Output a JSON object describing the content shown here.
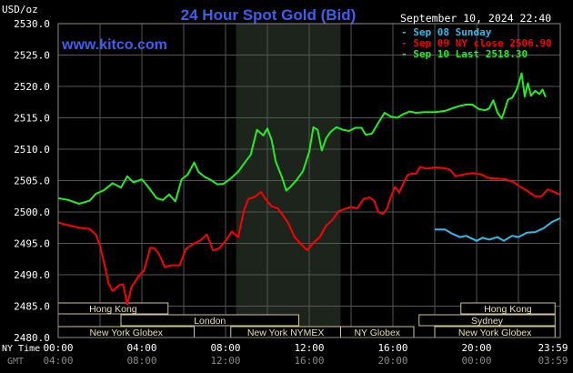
{
  "header": {
    "title": "24 Hour Spot Gold (Bid)",
    "unit": "USD/oz",
    "site": "www.kitco.com",
    "timestamp": "September 10, 2024 22:40"
  },
  "legend": [
    {
      "label": "Sep 08 Sunday",
      "color": "#33bbee"
    },
    {
      "label": "Sep 09 NY close 2506.90",
      "color": "#ff0000"
    },
    {
      "label": "Sep 10 Last 2518.30",
      "color": "#22ee22"
    }
  ],
  "axis_footer": {
    "nytime_label": "NY Time",
    "gmt_label": "GMT"
  },
  "markets": [
    {
      "name": "Hong Kong",
      "start": -1,
      "end": 5.25,
      "row": 0
    },
    {
      "name": "Hong Kong",
      "start": 19.25,
      "end": 23.75,
      "row": 0
    },
    {
      "name": "London",
      "start": 3,
      "end": 11.5,
      "row": 1
    },
    {
      "name": "Sydney",
      "start": 17.25,
      "end": 23.75,
      "row": 1
    },
    {
      "name": "New York Globex",
      "start": -1,
      "end": 6.5,
      "row": 2
    },
    {
      "name": "New York NYMEX",
      "start": 8.25,
      "end": 13.5,
      "row": 2
    },
    {
      "name": "NY Globex",
      "start": 13.5,
      "end": 17,
      "row": 2
    },
    {
      "name": "New York Globex",
      "start": 18,
      "end": 23.75,
      "row": 2
    }
  ],
  "chart_data": {
    "type": "line",
    "title": "24 Hour Spot Gold (Bid)",
    "ylabel": "USD/oz",
    "xlim": [
      0,
      24
    ],
    "ylim": [
      2480,
      2530
    ],
    "yticks": [
      "2530.0",
      "2525.0",
      "2520.0",
      "2515.0",
      "2510.0",
      "2505.0",
      "2500.0",
      "2495.0",
      "2490.0",
      "2485.0",
      "2480.0"
    ],
    "xticks_ny": [
      "00:00",
      "04:00",
      "08:00",
      "12:00",
      "16:00",
      "20:00",
      "23:59"
    ],
    "xticks_gmt": [
      "04:00",
      "08:00",
      "12:00",
      "16:00",
      "20:00",
      "00:00",
      "03:59"
    ],
    "shaded_hours": [
      8.5,
      13.5
    ],
    "series": [
      {
        "name": "Sep 08 Sunday",
        "color": "#33bbee",
        "points": [
          [
            18,
            2497.2
          ],
          [
            18.5,
            2497.2
          ],
          [
            18.8,
            2496.6
          ],
          [
            19.2,
            2496.0
          ],
          [
            19.5,
            2496.2
          ],
          [
            20,
            2495.4
          ],
          [
            20.3,
            2495.9
          ],
          [
            20.6,
            2495.6
          ],
          [
            21,
            2496.0
          ],
          [
            21.3,
            2495.4
          ],
          [
            21.7,
            2496.2
          ],
          [
            22,
            2496.0
          ],
          [
            22.4,
            2496.7
          ],
          [
            22.8,
            2496.8
          ],
          [
            23.2,
            2497.4
          ],
          [
            23.6,
            2498.4
          ],
          [
            23.99,
            2499.0
          ]
        ]
      },
      {
        "name": "Sep 09 NY close 2506.90",
        "color": "#ff0000",
        "points": [
          [
            0,
            2498.3
          ],
          [
            0.5,
            2497.9
          ],
          [
            1,
            2497.5
          ],
          [
            1.5,
            2497.3
          ],
          [
            1.8,
            2496.4
          ],
          [
            2,
            2494.6
          ],
          [
            2.2,
            2491.8
          ],
          [
            2.4,
            2488.7
          ],
          [
            2.6,
            2487.4
          ],
          [
            2.9,
            2488.3
          ],
          [
            3.1,
            2488.5
          ],
          [
            3.3,
            2485.3
          ],
          [
            3.5,
            2488.0
          ],
          [
            3.8,
            2489.6
          ],
          [
            4.1,
            2490.7
          ],
          [
            4.4,
            2494.3
          ],
          [
            4.6,
            2494.2
          ],
          [
            4.8,
            2493.4
          ],
          [
            5.1,
            2491.2
          ],
          [
            5.4,
            2491.5
          ],
          [
            5.8,
            2491.5
          ],
          [
            6.1,
            2494.1
          ],
          [
            6.4,
            2494.8
          ],
          [
            6.8,
            2495.5
          ],
          [
            7.1,
            2496.4
          ],
          [
            7.4,
            2493.9
          ],
          [
            7.7,
            2494.2
          ],
          [
            8,
            2495.4
          ],
          [
            8.3,
            2496.9
          ],
          [
            8.6,
            2496.0
          ],
          [
            8.9,
            2500.5
          ],
          [
            9.1,
            2502.1
          ],
          [
            9.4,
            2502.4
          ],
          [
            9.7,
            2503.2
          ],
          [
            9.9,
            2502.1
          ],
          [
            10.2,
            2500.9
          ],
          [
            10.5,
            2500.6
          ],
          [
            10.8,
            2499.2
          ],
          [
            11,
            2498.2
          ],
          [
            11.3,
            2496.0
          ],
          [
            11.6,
            2494.9
          ],
          [
            11.9,
            2493.9
          ],
          [
            12.2,
            2495.1
          ],
          [
            12.5,
            2496.0
          ],
          [
            12.8,
            2497.8
          ],
          [
            13.1,
            2498.7
          ],
          [
            13.4,
            2500.1
          ],
          [
            13.7,
            2500.5
          ],
          [
            14,
            2500.8
          ],
          [
            14.3,
            2500.6
          ],
          [
            14.6,
            2502.1
          ],
          [
            14.9,
            2502.3
          ],
          [
            15.1,
            2501.8
          ],
          [
            15.3,
            2500.0
          ],
          [
            15.5,
            2499.7
          ],
          [
            15.7,
            2500.4
          ],
          [
            15.9,
            2502.4
          ],
          [
            16.1,
            2504.0
          ],
          [
            16.3,
            2503.1
          ],
          [
            16.5,
            2504.6
          ],
          [
            16.7,
            2505.9
          ],
          [
            16.9,
            2506.1
          ],
          [
            17.1,
            2506.1
          ],
          [
            17.3,
            2507.2
          ],
          [
            17.6,
            2506.9
          ],
          [
            18,
            2507.1
          ],
          [
            18.4,
            2507.0
          ],
          [
            18.7,
            2506.8
          ],
          [
            19,
            2505.7
          ],
          [
            19.4,
            2506.0
          ],
          [
            19.8,
            2506.2
          ],
          [
            20.2,
            2506.0
          ],
          [
            20.6,
            2505.4
          ],
          [
            21,
            2505.3
          ],
          [
            21.4,
            2505.2
          ],
          [
            21.8,
            2504.7
          ],
          [
            22.1,
            2504.0
          ],
          [
            22.4,
            2503.4
          ],
          [
            22.8,
            2502.5
          ],
          [
            23.1,
            2502.5
          ],
          [
            23.4,
            2503.6
          ],
          [
            23.7,
            2503.2
          ],
          [
            23.99,
            2502.8
          ]
        ]
      },
      {
        "name": "Sep 10 Last 2518.30",
        "color": "#22ee22",
        "points": [
          [
            0,
            2502.2
          ],
          [
            0.5,
            2501.9
          ],
          [
            1,
            2501.3
          ],
          [
            1.5,
            2501.8
          ],
          [
            1.8,
            2502.9
          ],
          [
            2.2,
            2503.5
          ],
          [
            2.6,
            2504.6
          ],
          [
            3,
            2503.9
          ],
          [
            3.3,
            2505.7
          ],
          [
            3.6,
            2504.7
          ],
          [
            4,
            2505.2
          ],
          [
            4.3,
            2504.0
          ],
          [
            4.7,
            2502.2
          ],
          [
            5,
            2501.9
          ],
          [
            5.3,
            2502.8
          ],
          [
            5.6,
            2501.7
          ],
          [
            5.9,
            2505.2
          ],
          [
            6.2,
            2506.0
          ],
          [
            6.5,
            2507.9
          ],
          [
            6.7,
            2506.4
          ],
          [
            7,
            2505.6
          ],
          [
            7.3,
            2505.1
          ],
          [
            7.6,
            2504.4
          ],
          [
            7.9,
            2504.5
          ],
          [
            8.2,
            2505.2
          ],
          [
            8.6,
            2506.4
          ],
          [
            8.9,
            2507.8
          ],
          [
            9.2,
            2509.1
          ],
          [
            9.5,
            2513.1
          ],
          [
            9.8,
            2512.2
          ],
          [
            10,
            2513.3
          ],
          [
            10.2,
            2511.5
          ],
          [
            10.4,
            2508.0
          ],
          [
            10.7,
            2505.5
          ],
          [
            10.9,
            2503.4
          ],
          [
            11.1,
            2504.0
          ],
          [
            11.4,
            2505.1
          ],
          [
            11.7,
            2506.5
          ],
          [
            12,
            2509.6
          ],
          [
            12.2,
            2513.5
          ],
          [
            12.4,
            2513.1
          ],
          [
            12.6,
            2509.8
          ],
          [
            12.8,
            2511.7
          ],
          [
            13,
            2512.7
          ],
          [
            13.3,
            2513.5
          ],
          [
            13.6,
            2513.1
          ],
          [
            13.9,
            2512.9
          ],
          [
            14.2,
            2513.4
          ],
          [
            14.5,
            2513.4
          ],
          [
            14.7,
            2512.3
          ],
          [
            15,
            2512.5
          ],
          [
            15.3,
            2514.2
          ],
          [
            15.6,
            2515.8
          ],
          [
            15.9,
            2515.2
          ],
          [
            16.2,
            2515.0
          ],
          [
            16.5,
            2515.6
          ],
          [
            16.8,
            2516.0
          ],
          [
            17.1,
            2515.8
          ],
          [
            17.5,
            2515.9
          ],
          [
            18,
            2515.9
          ],
          [
            18.5,
            2516.1
          ],
          [
            18.9,
            2516.6
          ],
          [
            19.2,
            2516.9
          ],
          [
            19.5,
            2517.1
          ],
          [
            19.8,
            2517.1
          ],
          [
            20.1,
            2516.4
          ],
          [
            20.4,
            2516.2
          ],
          [
            20.6,
            2516.5
          ],
          [
            20.8,
            2517.8
          ],
          [
            21,
            2515.8
          ],
          [
            21.2,
            2514.9
          ],
          [
            21.3,
            2515.8
          ],
          [
            21.5,
            2517.9
          ],
          [
            21.7,
            2518.2
          ],
          [
            21.9,
            2519.4
          ],
          [
            22.05,
            2520.9
          ],
          [
            22.15,
            2522.1
          ],
          [
            22.3,
            2518.4
          ],
          [
            22.45,
            2520.5
          ],
          [
            22.6,
            2518.5
          ],
          [
            22.8,
            2519.3
          ],
          [
            23,
            2518.8
          ],
          [
            23.15,
            2519.5
          ],
          [
            23.3,
            2518.3
          ]
        ]
      }
    ]
  }
}
